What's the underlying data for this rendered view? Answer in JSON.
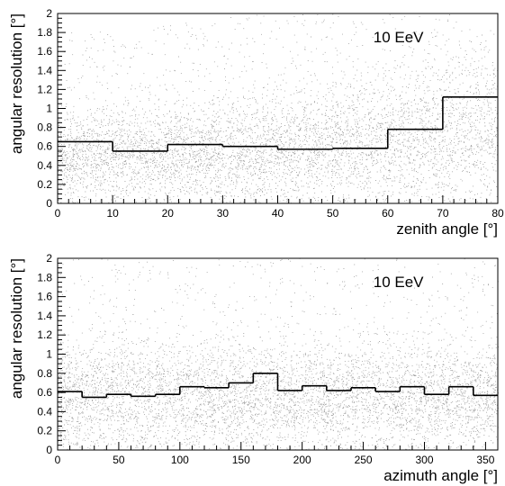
{
  "chart_data": [
    {
      "type": "scatter",
      "subtype": "step-histogram-over-scatter",
      "annotation": "10 EeV",
      "xlabel": "zenith angle [°]",
      "ylabel": "angular resolution [°]",
      "xlim": [
        0,
        80
      ],
      "ylim": [
        0,
        2
      ],
      "xticks": [
        0,
        10,
        20,
        30,
        40,
        50,
        60,
        70,
        80
      ],
      "yticks": [
        0,
        0.2,
        0.4,
        0.6,
        0.8,
        1,
        1.2,
        1.4,
        1.6,
        1.8,
        2
      ],
      "series": [
        {
          "kind": "step",
          "bin_edges": [
            0,
            10,
            20,
            30,
            40,
            50,
            60,
            70,
            80
          ],
          "values": [
            0.65,
            0.55,
            0.62,
            0.6,
            0.57,
            0.58,
            0.78,
            1.12
          ]
        }
      ],
      "scatter_points": 6000,
      "scatter_density": "concentrated around 0.1–0.6 at intermediate zenith, sparser above 1",
      "grid": false,
      "line_color": "#000000",
      "point_color": "#555555"
    },
    {
      "type": "scatter",
      "subtype": "step-histogram-over-scatter",
      "annotation": "10 EeV",
      "xlabel": "azimuth angle [°]",
      "ylabel": "angular resolution [°]",
      "xlim": [
        0,
        360
      ],
      "ylim": [
        0,
        2
      ],
      "xticks": [
        0,
        50,
        100,
        150,
        200,
        250,
        300,
        350
      ],
      "yticks": [
        0,
        0.2,
        0.4,
        0.6,
        0.8,
        1,
        1.2,
        1.4,
        1.6,
        1.8,
        2
      ],
      "series": [
        {
          "kind": "step",
          "bin_edges": [
            0,
            20,
            40,
            60,
            80,
            100,
            120,
            140,
            160,
            180,
            200,
            220,
            240,
            260,
            280,
            300,
            320,
            340,
            360
          ],
          "values": [
            0.61,
            0.55,
            0.58,
            0.56,
            0.58,
            0.66,
            0.65,
            0.7,
            0.8,
            0.62,
            0.67,
            0.62,
            0.65,
            0.61,
            0.66,
            0.58,
            0.66,
            0.57
          ]
        }
      ],
      "scatter_points": 6000,
      "scatter_density": "uniform in azimuth, concentrated around 0.1–0.6",
      "grid": false,
      "line_color": "#000000",
      "point_color": "#555555"
    }
  ]
}
